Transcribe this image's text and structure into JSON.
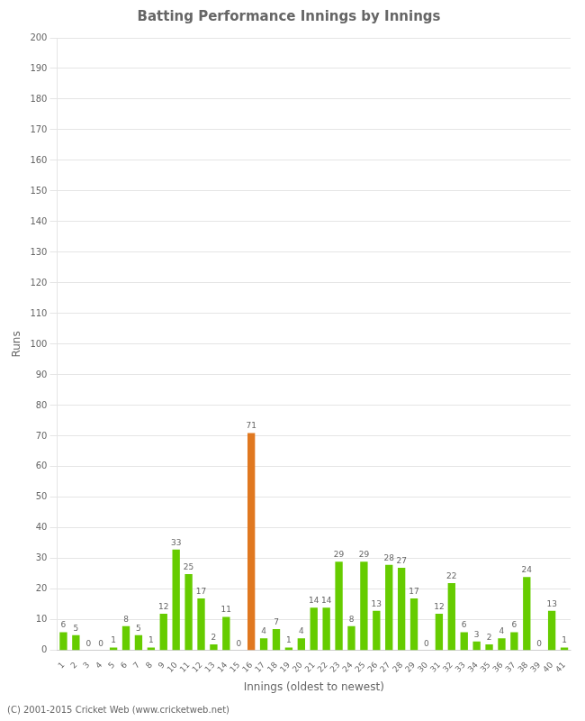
{
  "chart_data": {
    "type": "bar",
    "title": "Batting Performance Innings by Innings",
    "xlabel": "Innings (oldest to newest)",
    "ylabel": "Runs",
    "annotations": [
      "(C) 2001-2015 Cricket Web (www.cricketweb.net)"
    ],
    "categories": [
      "1",
      "2",
      "3",
      "4",
      "5",
      "6",
      "7",
      "8",
      "9",
      "10",
      "11",
      "12",
      "13",
      "14",
      "15",
      "16",
      "17",
      "18",
      "19",
      "20",
      "21",
      "22",
      "23",
      "24",
      "25",
      "26",
      "27",
      "28",
      "29",
      "30",
      "31",
      "32",
      "33",
      "34",
      "35",
      "36",
      "37",
      "38",
      "39",
      "40",
      "41"
    ],
    "values": [
      6,
      5,
      0,
      0,
      1,
      8,
      5,
      1,
      12,
      33,
      25,
      17,
      2,
      11,
      0,
      71,
      4,
      7,
      1,
      4,
      14,
      14,
      29,
      8,
      29,
      13,
      28,
      27,
      17,
      0,
      12,
      22,
      6,
      3,
      2,
      4,
      6,
      24,
      0,
      13,
      1
    ],
    "colors": [
      "#66cc00",
      "#66cc00",
      "#66cc00",
      "#66cc00",
      "#66cc00",
      "#66cc00",
      "#66cc00",
      "#66cc00",
      "#66cc00",
      "#66cc00",
      "#66cc00",
      "#66cc00",
      "#66cc00",
      "#66cc00",
      "#66cc00",
      "#e07820",
      "#66cc00",
      "#66cc00",
      "#66cc00",
      "#66cc00",
      "#66cc00",
      "#66cc00",
      "#66cc00",
      "#66cc00",
      "#66cc00",
      "#66cc00",
      "#66cc00",
      "#66cc00",
      "#66cc00",
      "#66cc00",
      "#66cc00",
      "#66cc00",
      "#66cc00",
      "#66cc00",
      "#66cc00",
      "#66cc00",
      "#66cc00",
      "#66cc00",
      "#66cc00",
      "#66cc00",
      "#66cc00"
    ],
    "ylim": [
      0,
      200
    ],
    "yticks": [
      0,
      10,
      20,
      30,
      40,
      50,
      60,
      70,
      80,
      90,
      100,
      110,
      120,
      130,
      140,
      150,
      160,
      170,
      180,
      190,
      200
    ],
    "grid": true,
    "data_labels": true
  }
}
